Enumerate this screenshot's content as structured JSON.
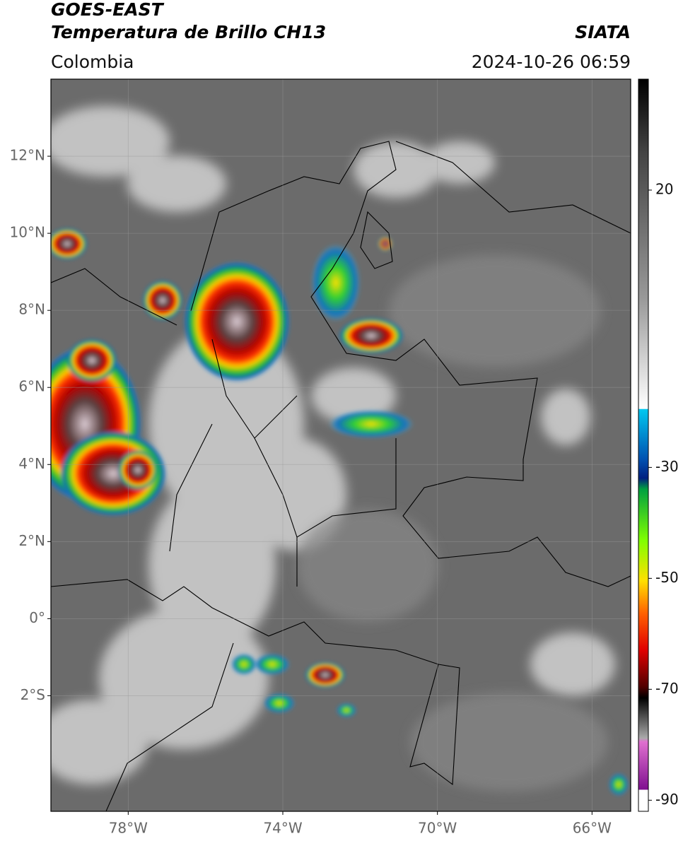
{
  "header": {
    "title": "GOES-EAST",
    "subtitle": "Temperatura de Brillo CH13",
    "source": "SIATA",
    "region": "Colombia",
    "datetime": "2024-10-26 06:59"
  },
  "map": {
    "lonlim": [
      -80,
      -65
    ],
    "latlim": [
      -5,
      14
    ],
    "lon_ticks": [
      {
        "value": -78,
        "label": "78°W"
      },
      {
        "value": -74,
        "label": "74°W"
      },
      {
        "value": -70,
        "label": "70°W"
      },
      {
        "value": -66,
        "label": "66°W"
      }
    ],
    "lat_ticks": [
      {
        "value": 12,
        "label": "12°N"
      },
      {
        "value": 10,
        "label": "10°N"
      },
      {
        "value": 8,
        "label": "8°N"
      },
      {
        "value": 6,
        "label": "6°N"
      },
      {
        "value": 4,
        "label": "4°N"
      },
      {
        "value": 2,
        "label": "2°N"
      },
      {
        "value": 0,
        "label": "0°"
      },
      {
        "value": -2,
        "label": "2°S"
      }
    ],
    "grid": true
  },
  "colorbar": {
    "lim": [
      -92,
      40
    ],
    "ticks": [
      20,
      -30,
      -50,
      -70,
      -90
    ]
  }
}
